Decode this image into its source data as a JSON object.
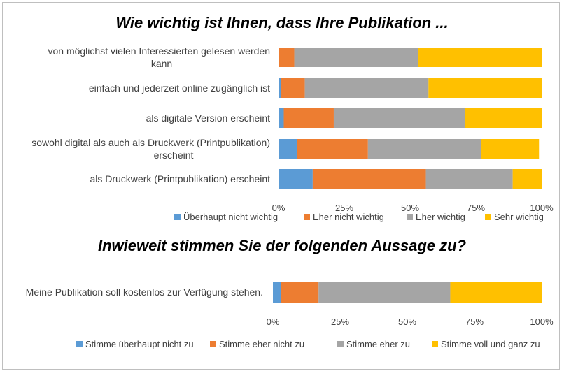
{
  "chart_data": [
    {
      "type": "bar",
      "orientation": "horizontal",
      "stacked": "percent",
      "title": "Wie wichtig ist Ihnen, dass Ihre Publikation ...",
      "categories": [
        [
          "von möglichst vielen Interessierten gelesen werden",
          "kann"
        ],
        [
          "einfach und jederzeit online zugänglich ist"
        ],
        [
          "als digitale Version erscheint"
        ],
        [
          "sowohl digital als auch als Druckwerk (Printpublikation)",
          "erscheint"
        ],
        [
          "als Druckwerk (Printpublikation) erscheint"
        ]
      ],
      "series": [
        {
          "name": "Überhaupt nicht wichtig",
          "color": "#5b9bd5",
          "values": [
            0,
            1,
            2,
            7,
            13
          ]
        },
        {
          "name": "Eher nicht wichtig",
          "color": "#ed7d31",
          "values": [
            6,
            9,
            19,
            27,
            43
          ]
        },
        {
          "name": "Eher wichtig",
          "color": "#a5a5a5",
          "values": [
            47,
            47,
            50,
            43,
            33
          ]
        },
        {
          "name": "Sehr wichtig",
          "color": "#ffc000",
          "values": [
            47,
            43,
            29,
            22,
            11
          ]
        }
      ],
      "x_ticks": [
        "0%",
        "25%",
        "50%",
        "75%",
        "100%"
      ],
      "xlim": [
        0,
        100
      ],
      "legend": "bottom",
      "grid": false
    },
    {
      "type": "bar",
      "orientation": "horizontal",
      "stacked": "percent",
      "title": "Inwieweit stimmen Sie der folgenden Aussage zu?",
      "categories": [
        [
          "Meine Publikation soll kostenlos zur Verfügung stehen."
        ]
      ],
      "series": [
        {
          "name": "Stimme überhaupt nicht zu",
          "color": "#5b9bd5",
          "values": [
            3
          ]
        },
        {
          "name": "Stimme eher nicht zu",
          "color": "#ed7d31",
          "values": [
            14
          ]
        },
        {
          "name": "Stimme eher zu",
          "color": "#a5a5a5",
          "values": [
            49
          ]
        },
        {
          "name": "Stimme voll und ganz zu",
          "color": "#ffc000",
          "values": [
            34
          ]
        }
      ],
      "x_ticks": [
        "0%",
        "25%",
        "50%",
        "75%",
        "100%"
      ],
      "xlim": [
        0,
        100
      ],
      "legend": "bottom",
      "grid": false
    }
  ]
}
